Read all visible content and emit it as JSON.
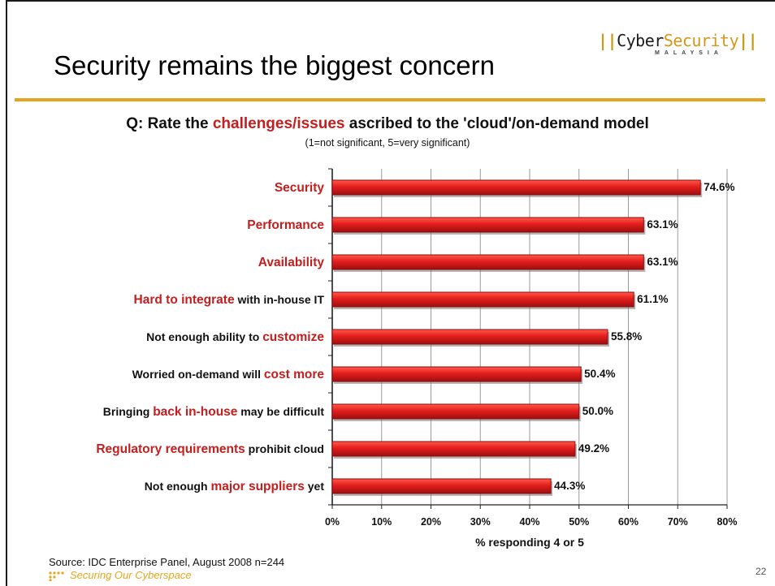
{
  "slide": {
    "title": "Security remains the biggest concern",
    "logo": {
      "bars": "||",
      "word_part1": "Cyber",
      "word_part2": "Security",
      "sub": "MALAYSIA"
    },
    "question_prefix": "Q: Rate the ",
    "question_highlight": "challenges/issues",
    "question_suffix": " ascribed to the 'cloud'/on-demand model",
    "scale_note": "(1=not significant, 5=very significant)",
    "source": "Source: IDC Enterprise Panel, August 2008  n=244",
    "footer_tagline": "Securing Our Cyberspace",
    "page_number": "22"
  },
  "colors": {
    "bar": "#e31d1d",
    "bar_dark": "#8c0c0c",
    "highlight": "#c41e1e",
    "accent": "#e5a51d"
  },
  "chart_data": {
    "type": "bar",
    "orientation": "horizontal",
    "categories": [
      [
        {
          "t": "Security",
          "hl": true
        }
      ],
      [
        {
          "t": "Performance",
          "hl": true
        }
      ],
      [
        {
          "t": "Availability",
          "hl": true
        }
      ],
      [
        {
          "t": "Hard to integrate",
          "hl": true
        },
        {
          "t": " with in-house IT",
          "hl": false
        }
      ],
      [
        {
          "t": "Not enough ability to ",
          "hl": false
        },
        {
          "t": "customize",
          "hl": true
        }
      ],
      [
        {
          "t": "Worried on-demand will ",
          "hl": false
        },
        {
          "t": "cost more",
          "hl": true
        }
      ],
      [
        {
          "t": "Bringing ",
          "hl": false
        },
        {
          "t": "back in-house",
          "hl": true
        },
        {
          "t": " may be difficult",
          "hl": false
        }
      ],
      [
        {
          "t": "Regulatory requirements",
          "hl": true
        },
        {
          "t": " prohibit cloud",
          "hl": false
        }
      ],
      [
        {
          "t": "Not enough ",
          "hl": false
        },
        {
          "t": "major suppliers",
          "hl": true
        },
        {
          "t": " yet",
          "hl": false
        }
      ]
    ],
    "values": [
      74.6,
      63.1,
      63.1,
      61.1,
      55.8,
      50.4,
      50.0,
      49.2,
      44.3
    ],
    "value_labels": [
      "74.6%",
      "63.1%",
      "63.1%",
      "61.1%",
      "55.8%",
      "50.4%",
      "50.0%",
      "49.2%",
      "44.3%"
    ],
    "xlim": [
      0,
      80
    ],
    "x_ticks": [
      "0%",
      "10%",
      "20%",
      "30%",
      "40%",
      "50%",
      "60%",
      "70%",
      "80%"
    ],
    "xlabel": "% responding 4 or 5",
    "grid": true
  }
}
